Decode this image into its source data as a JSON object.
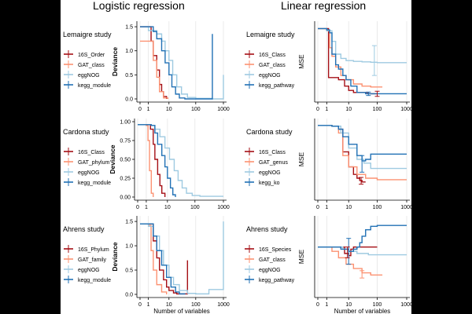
{
  "figure": {
    "column_titles": [
      "Logistic regression",
      "Linear regression"
    ],
    "colors": {
      "dark_red": "#a50f15",
      "light_orange": "#fc9272",
      "light_blue": "#9ecae1",
      "dark_blue": "#2171b5",
      "grid": "#e6e6e6",
      "axis": "#000000"
    }
  },
  "chart_data": [
    {
      "id": "lemaigre-logistic",
      "type": "line",
      "study": "Lemaigre study",
      "xlabel": "",
      "ylabel": "Deviance",
      "xscale": "pseudo-log",
      "xlim": [
        0,
        1000
      ],
      "ylim": [
        0,
        1.55
      ],
      "xticks": [
        {
          "v": 0,
          "label": "0"
        },
        {
          "v": 1,
          "label": "1"
        },
        {
          "v": 10,
          "label": "10"
        },
        {
          "v": 100,
          "label": "100"
        },
        {
          "v": 1000,
          "label": "1000"
        }
      ],
      "yticks": [
        {
          "v": 0,
          "label": "0.0"
        },
        {
          "v": 0.5,
          "label": "0.5"
        },
        {
          "v": 1.0,
          "label": "1.0"
        },
        {
          "v": 1.5,
          "label": "1.5"
        }
      ],
      "legend": [
        "16S_Order",
        "GAT_class",
        "eggNOG",
        "kegg_module"
      ],
      "series": [
        {
          "name": "16S_Order",
          "color_key": "dark_red",
          "x": [
            0,
            1,
            1.5,
            2,
            3,
            4,
            5,
            6,
            8
          ],
          "y": [
            1.5,
            1.5,
            1.2,
            0.9,
            0.6,
            0.3,
            0.15,
            0.05,
            0
          ]
        },
        {
          "name": "GAT_class",
          "color_key": "light_orange",
          "x": [
            0,
            1.2,
            2,
            3,
            4,
            6,
            9
          ],
          "y": [
            1.2,
            1.2,
            0.8,
            0.45,
            0.15,
            0.02,
            0
          ]
        },
        {
          "name": "eggNOG",
          "color_key": "light_blue",
          "x": [
            0,
            1,
            3,
            5,
            7,
            10,
            14,
            20,
            30,
            50,
            100,
            400,
            1000
          ],
          "y": [
            1.5,
            1.42,
            1.35,
            1.2,
            1.0,
            0.8,
            0.5,
            0.25,
            0.1,
            0.03,
            0.01,
            0.0,
            0.5
          ]
        },
        {
          "name": "kegg_module",
          "color_key": "dark_blue",
          "x": [
            0,
            1,
            2,
            3,
            5,
            7,
            10,
            13,
            18,
            25,
            40,
            400,
            400
          ],
          "y": [
            1.5,
            1.5,
            1.4,
            1.25,
            1.0,
            0.75,
            0.5,
            0.25,
            0.1,
            0.02,
            0,
            0,
            1.35
          ]
        }
      ],
      "error_bars": []
    },
    {
      "id": "lemaigre-linear",
      "type": "line",
      "study": "Lemaigre study",
      "xlabel": "",
      "ylabel": "MSE",
      "xscale": "pseudo-log",
      "xlim": [
        0,
        1000
      ],
      "ylim": [
        0,
        1.75
      ],
      "xticks": [
        {
          "v": 0,
          "label": "0"
        },
        {
          "v": 1,
          "label": "1"
        },
        {
          "v": 10,
          "label": "10"
        },
        {
          "v": 100,
          "label": "100"
        },
        {
          "v": 1000,
          "label": "1000"
        }
      ],
      "yticks": [],
      "legend": [
        "16S_Class",
        "GAT_class",
        "eggNOG",
        "kegg_pathway"
      ],
      "series": [
        {
          "name": "16S_Class",
          "color_key": "dark_red",
          "x": [
            0,
            1,
            1.3,
            2,
            4,
            7,
            10,
            15,
            25,
            50,
            100
          ],
          "y": [
            1.65,
            1.65,
            0.5,
            0.5,
            0.45,
            0.3,
            0.2,
            0.15,
            0.15,
            0.12,
            0.12
          ]
        },
        {
          "name": "GAT_class",
          "color_key": "light_orange",
          "x": [
            0,
            1,
            1.5,
            2,
            3,
            5,
            8,
            15,
            30,
            60,
            150
          ],
          "y": [
            1.65,
            1.6,
            1.2,
            1.0,
            0.75,
            0.55,
            0.45,
            0.35,
            0.3,
            0.28,
            0.28
          ]
        },
        {
          "name": "eggNOG",
          "color_key": "light_blue",
          "x": [
            0,
            1,
            2,
            3,
            5,
            8,
            15,
            30,
            60,
            100,
            1000
          ],
          "y": [
            1.65,
            1.6,
            1.35,
            1.05,
            0.95,
            0.9,
            0.88,
            0.87,
            0.86,
            0.85,
            0.85
          ]
        },
        {
          "name": "kegg_pathway",
          "color_key": "dark_blue",
          "x": [
            0,
            1,
            1.5,
            2,
            3,
            4,
            6,
            8,
            12,
            20,
            40,
            80,
            200,
            1000
          ],
          "y": [
            1.65,
            1.62,
            1.55,
            1.05,
            0.8,
            0.7,
            0.55,
            0.45,
            0.3,
            0.15,
            0.12,
            0.12,
            0.12,
            0.12
          ]
        }
      ],
      "error_bars": [
        {
          "color_key": "light_blue",
          "x": 80,
          "lo": 0.55,
          "hi": 1.25
        },
        {
          "color_key": "dark_red",
          "x": 100,
          "lo": 0.06,
          "hi": 0.18
        },
        {
          "color_key": "dark_blue",
          "x": 50,
          "lo": 0.08,
          "hi": 0.16
        }
      ]
    },
    {
      "id": "cardona-logistic",
      "type": "line",
      "study": "Cardona study",
      "xlabel": "",
      "ylabel": "Deviance",
      "xscale": "pseudo-log",
      "xlim": [
        0,
        1000
      ],
      "ylim": [
        0,
        1.0
      ],
      "xticks": [
        {
          "v": 0,
          "label": "0"
        },
        {
          "v": 1,
          "label": "1"
        },
        {
          "v": 10,
          "label": "10"
        },
        {
          "v": 100,
          "label": "100"
        },
        {
          "v": 1000,
          "label": "1000"
        }
      ],
      "yticks": [
        {
          "v": 0,
          "label": "0.00"
        },
        {
          "v": 0.25,
          "label": "0.25"
        },
        {
          "v": 0.5,
          "label": "0.50"
        },
        {
          "v": 0.75,
          "label": "0.75"
        },
        {
          "v": 1.0,
          "label": "1.00"
        }
      ],
      "legend": [
        "16S_Class",
        "GAT_phylum",
        "eggNOG",
        "kegg_module"
      ],
      "series": [
        {
          "name": "16S_Class",
          "color_key": "dark_red",
          "x": [
            0,
            1,
            1.8,
            2.5,
            3,
            4,
            5,
            6,
            8
          ],
          "y": [
            0.96,
            0.96,
            0.9,
            0.7,
            0.5,
            0.3,
            0.15,
            0.05,
            0
          ]
        },
        {
          "name": "GAT_phylum",
          "color_key": "light_orange",
          "x": [
            0,
            1,
            1.3,
            1.6,
            2,
            2.5
          ],
          "y": [
            0.96,
            0.95,
            0.75,
            0.35,
            0.05,
            0
          ]
        },
        {
          "name": "eggNOG",
          "color_key": "light_blue",
          "x": [
            0,
            2,
            3,
            5,
            8,
            12,
            18,
            25,
            35,
            50,
            80,
            150,
            1000
          ],
          "y": [
            0.96,
            0.95,
            0.9,
            0.8,
            0.65,
            0.5,
            0.35,
            0.22,
            0.12,
            0.05,
            0.02,
            0.01,
            0.01
          ]
        },
        {
          "name": "kegg_module",
          "color_key": "dark_blue",
          "x": [
            0,
            2,
            3,
            4,
            6,
            8,
            10,
            13,
            16,
            20
          ],
          "y": [
            0.96,
            0.95,
            0.85,
            0.7,
            0.55,
            0.4,
            0.25,
            0.12,
            0.03,
            0
          ]
        }
      ],
      "error_bars": []
    },
    {
      "id": "cardona-linear",
      "type": "line",
      "study": "Cardona study",
      "xlabel": "",
      "ylabel": "MSE",
      "xscale": "pseudo-log",
      "xlim": [
        0,
        1000
      ],
      "ylim": [
        0,
        1.0
      ],
      "xticks": [
        {
          "v": 0,
          "label": "0"
        },
        {
          "v": 1,
          "label": "1"
        },
        {
          "v": 10,
          "label": "10"
        },
        {
          "v": 100,
          "label": "100"
        },
        {
          "v": 1000,
          "label": "1000"
        }
      ],
      "yticks": [],
      "legend": [
        "16S_Class",
        "GAT_genus",
        "eggNOG",
        "kegg_ko"
      ],
      "series": [
        {
          "name": "16S_Class",
          "color_key": "dark_red",
          "x": [
            0,
            2,
            4,
            6,
            10,
            15,
            20,
            25,
            30,
            40
          ],
          "y": [
            0.95,
            0.94,
            0.9,
            0.6,
            0.4,
            0.3,
            0.25,
            0.22,
            0.2,
            0.2
          ]
        },
        {
          "name": "GAT_genus",
          "color_key": "light_orange",
          "x": [
            0,
            2,
            4,
            6,
            10,
            20,
            40,
            100,
            1000
          ],
          "y": [
            0.95,
            0.94,
            0.85,
            0.55,
            0.4,
            0.3,
            0.25,
            0.23,
            0.23
          ]
        },
        {
          "name": "eggNOG",
          "color_key": "light_blue",
          "x": [
            0,
            2,
            5,
            10,
            20,
            35,
            60,
            1000
          ],
          "y": [
            0.95,
            0.94,
            0.85,
            0.65,
            0.5,
            0.45,
            0.38,
            0.38
          ]
        },
        {
          "name": "kegg_ko",
          "color_key": "dark_blue",
          "x": [
            0,
            2,
            4,
            6,
            10,
            20,
            30,
            40,
            60,
            1000
          ],
          "y": [
            0.95,
            0.94,
            0.9,
            0.8,
            0.7,
            0.55,
            0.48,
            0.5,
            0.57,
            0.57
          ]
        }
      ],
      "error_bars": [
        {
          "color_key": "dark_blue",
          "x": 30,
          "lo": 0.33,
          "hi": 0.55
        },
        {
          "color_key": "dark_red",
          "x": 28,
          "lo": 0.17,
          "hi": 0.26
        }
      ]
    },
    {
      "id": "ahrens-logistic",
      "type": "line",
      "study": "Ahrens study",
      "xlabel": "Number of variables",
      "ylabel": "Deviance",
      "xscale": "pseudo-log",
      "xlim": [
        0,
        1000
      ],
      "ylim": [
        0,
        1.55
      ],
      "xticks": [
        {
          "v": 0,
          "label": "0"
        },
        {
          "v": 1,
          "label": "1"
        },
        {
          "v": 10,
          "label": "10"
        },
        {
          "v": 100,
          "label": "100"
        },
        {
          "v": 1000,
          "label": "1000"
        }
      ],
      "yticks": [
        {
          "v": 0,
          "label": "0.0"
        },
        {
          "v": 0.5,
          "label": "0.5"
        },
        {
          "v": 1.0,
          "label": "1.0"
        },
        {
          "v": 1.5,
          "label": "1.5"
        }
      ],
      "legend": [
        "16S_Phylum",
        "GAT_family",
        "eggNOG",
        "kegg_module"
      ],
      "series": [
        {
          "name": "16S_Phylum",
          "color_key": "dark_red",
          "x": [
            0,
            1,
            2,
            3,
            4,
            6,
            8,
            10,
            15,
            20,
            50,
            50
          ],
          "y": [
            1.45,
            1.45,
            1.1,
            0.75,
            0.5,
            0.3,
            0.15,
            0.08,
            0.03,
            0.01,
            0.01,
            0.7
          ]
        },
        {
          "name": "GAT_family",
          "color_key": "light_orange",
          "x": [
            0,
            1,
            1.5,
            2,
            3,
            5,
            8
          ],
          "y": [
            1.45,
            1.42,
            0.9,
            0.5,
            0.2,
            0.05,
            0
          ]
        },
        {
          "name": "eggNOG",
          "color_key": "light_blue",
          "x": [
            0,
            1,
            2,
            4,
            6,
            10,
            15,
            25,
            50,
            100,
            300,
            1000
          ],
          "y": [
            1.45,
            1.4,
            1.2,
            0.9,
            0.6,
            0.35,
            0.2,
            0.08,
            0.02,
            0.01,
            0.1,
            1.5
          ]
        },
        {
          "name": "kegg_module",
          "color_key": "dark_blue",
          "x": [
            0,
            1,
            2,
            3,
            5,
            8,
            12,
            18,
            25,
            40
          ],
          "y": [
            1.45,
            1.45,
            1.2,
            0.9,
            0.6,
            0.35,
            0.15,
            0.05,
            0.01,
            0
          ]
        }
      ],
      "error_bars": []
    },
    {
      "id": "ahrens-linear",
      "type": "line",
      "study": "Ahrens study",
      "xlabel": "Number of variables",
      "ylabel": "MSE",
      "xscale": "pseudo-log",
      "xlim": [
        0,
        1000
      ],
      "ylim": [
        0,
        1.75
      ],
      "xticks": [
        {
          "v": 0,
          "label": "0"
        },
        {
          "v": 1,
          "label": "1"
        },
        {
          "v": 10,
          "label": "10"
        },
        {
          "v": 100,
          "label": "100"
        },
        {
          "v": 1000,
          "label": "1000"
        }
      ],
      "yticks": [],
      "legend": [
        "16S_Species",
        "GAT_class",
        "eggNOG",
        "kegg_pathway"
      ],
      "series": [
        {
          "name": "16S_Species",
          "color_key": "dark_red",
          "x": [
            0,
            5,
            7,
            10,
            12,
            15,
            20,
            30,
            100
          ],
          "y": [
            1.1,
            1.1,
            0.95,
            0.9,
            1.05,
            1.1,
            1.1,
            1.1,
            1.1
          ]
        },
        {
          "name": "GAT_class",
          "color_key": "light_orange",
          "x": [
            0,
            2,
            4,
            8,
            15,
            30,
            60,
            150
          ],
          "y": [
            1.1,
            1.0,
            0.85,
            0.7,
            0.6,
            0.5,
            0.45,
            0.45
          ]
        },
        {
          "name": "eggNOG",
          "color_key": "light_blue",
          "x": [
            0,
            3,
            6,
            10,
            20,
            50,
            100,
            1000
          ],
          "y": [
            1.1,
            1.1,
            1.05,
            1.0,
            0.95,
            0.92,
            0.92,
            0.92
          ]
        },
        {
          "name": "kegg_pathway",
          "color_key": "dark_blue",
          "x": [
            0,
            2,
            5,
            10,
            15,
            20,
            25,
            30,
            40,
            60,
            100,
            1000
          ],
          "y": [
            1.1,
            1.1,
            1.05,
            1.0,
            1.05,
            1.1,
            1.2,
            1.35,
            1.5,
            1.58,
            1.6,
            1.6
          ]
        }
      ],
      "error_bars": [
        {
          "color_key": "dark_blue",
          "x": 10,
          "lo": 0.7,
          "hi": 1.3
        },
        {
          "color_key": "light_orange",
          "x": 30,
          "lo": 0.38,
          "hi": 0.55
        },
        {
          "color_key": "dark_red",
          "x": 9,
          "lo": 0.85,
          "hi": 1.1
        }
      ]
    }
  ]
}
